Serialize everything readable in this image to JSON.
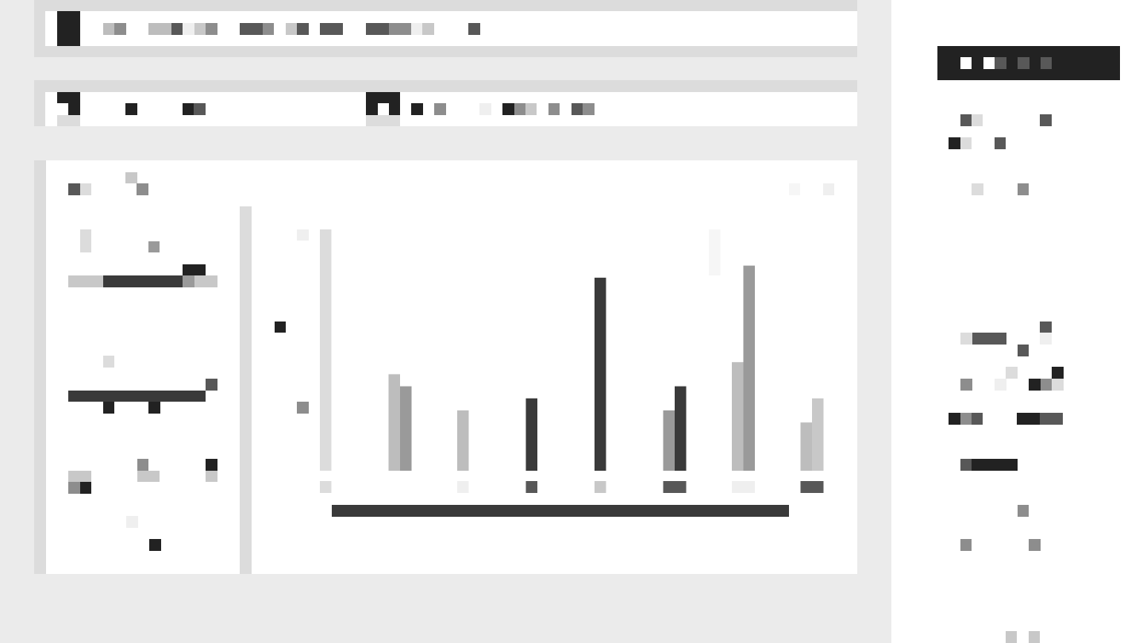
{
  "window": {
    "title": ""
  },
  "nav": {
    "items": [
      "",
      "",
      "",
      "",
      "",
      ""
    ]
  },
  "toolbar": {
    "tabs": [
      "",
      ""
    ],
    "actions": [
      "",
      ""
    ]
  },
  "filters": {
    "title": "",
    "groups": [
      {
        "label": "",
        "value": ""
      },
      {
        "label": "",
        "value": ""
      },
      {
        "label": "",
        "value": ""
      },
      {
        "label": "",
        "value": ""
      }
    ]
  },
  "right_panel": {
    "primary_button": "",
    "rows": [
      "",
      "",
      "",
      "",
      "",
      "",
      "",
      ""
    ]
  },
  "chart_data": {
    "type": "bar",
    "categories": [
      "",
      "",
      "",
      "",
      "",
      "",
      "",
      ""
    ],
    "series": [
      {
        "color": "#dcdcdc",
        "values": [
          1.0,
          0,
          0,
          0,
          0,
          0,
          0,
          0
        ]
      },
      {
        "color": "#bdbdbd",
        "values": [
          0,
          0.4,
          0.25,
          0,
          0,
          0,
          0.45,
          0.2
        ]
      },
      {
        "color": "#9a9a9a",
        "values": [
          0,
          0.35,
          0,
          0,
          0,
          0.25,
          0.85,
          0
        ]
      },
      {
        "color": "#3a3a3a",
        "values": [
          0,
          0,
          0,
          0.3,
          0.8,
          0.35,
          0,
          0
        ]
      },
      {
        "color": "#c8c8c8",
        "values": [
          0,
          0,
          0,
          0,
          0,
          0,
          0,
          0.3
        ]
      }
    ],
    "ylim": [
      0,
      1
    ],
    "grid": false,
    "legend": "none",
    "colors": {
      "accent": "#222222",
      "panel": "#ffffff",
      "background": "#ebebeb"
    }
  }
}
